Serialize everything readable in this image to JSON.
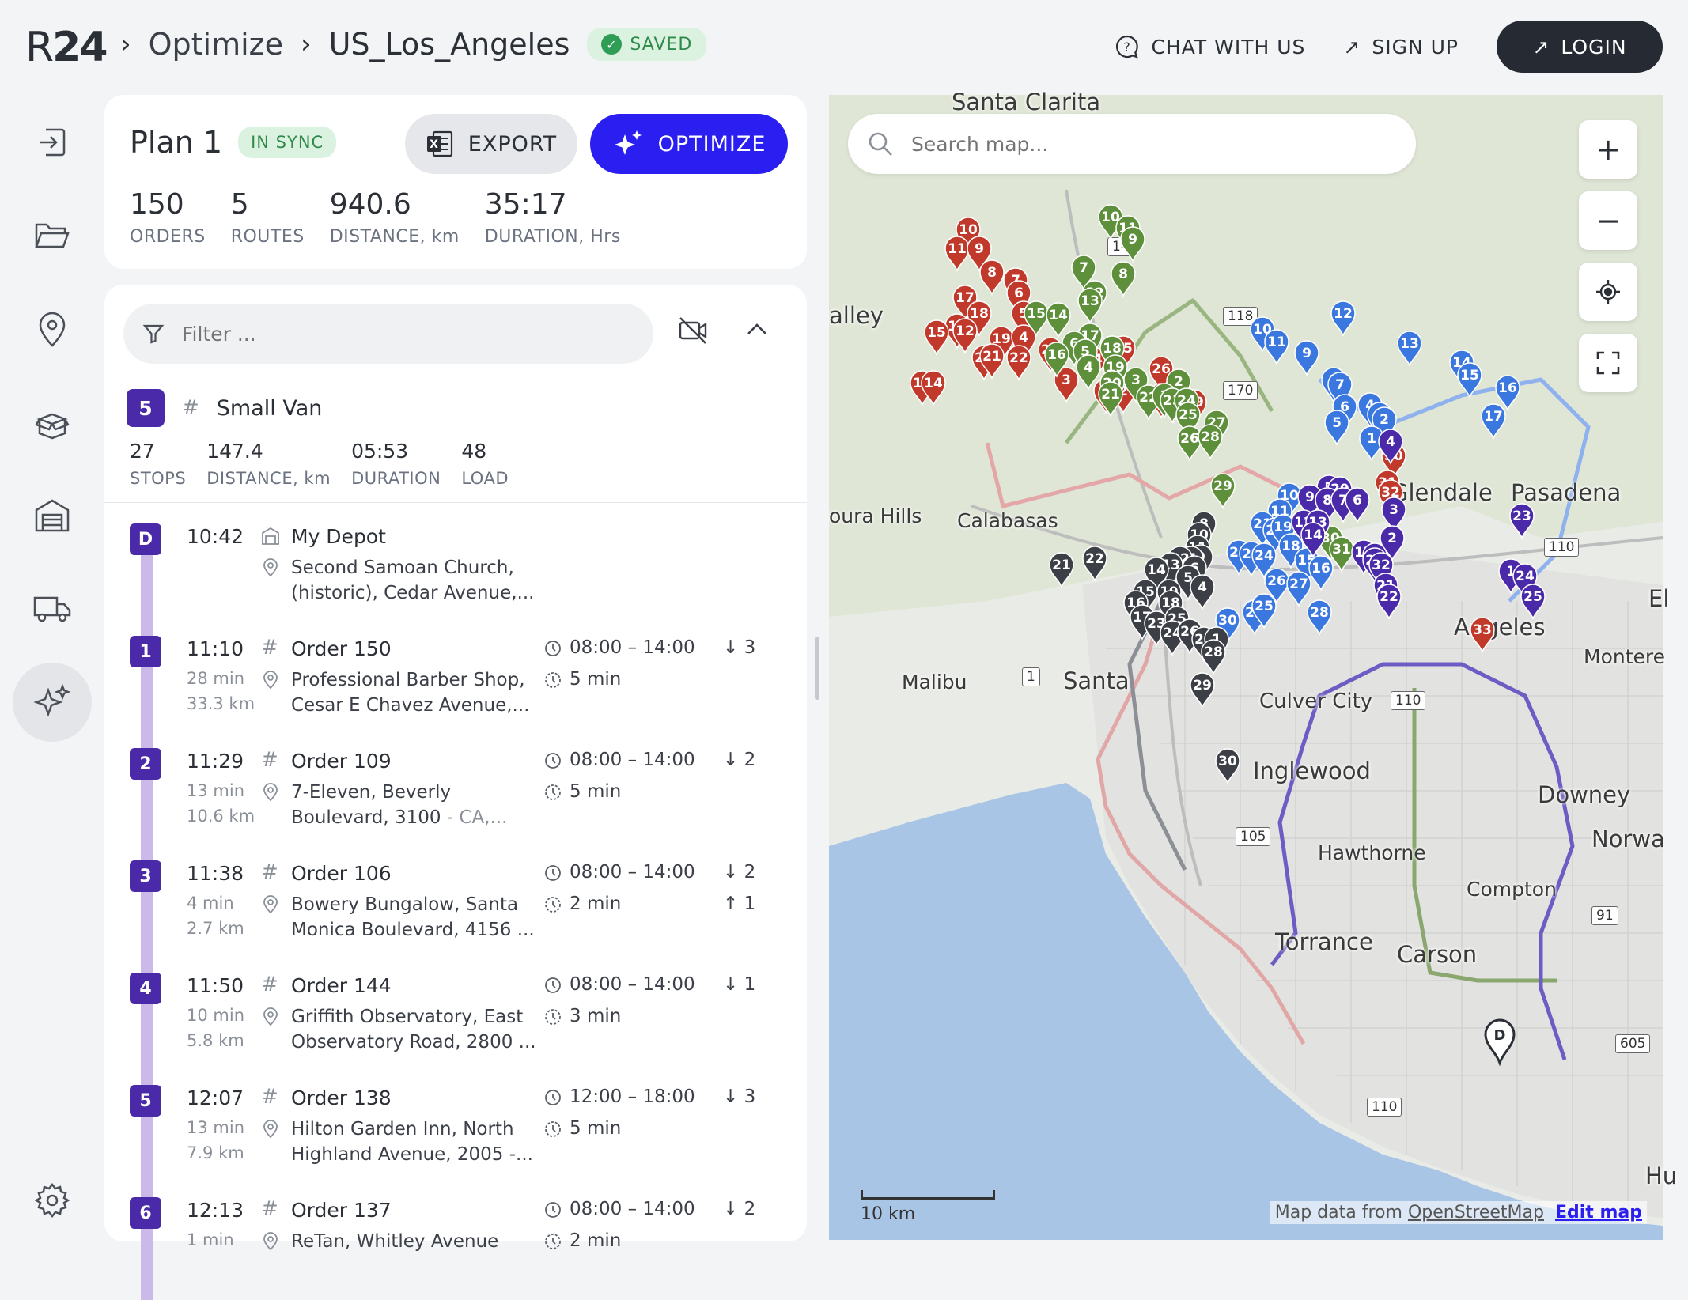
{
  "header": {
    "logo_light": "R",
    "logo_bold": "24",
    "breadcrumb": [
      "Optimize",
      "US_Los_Angeles"
    ],
    "saved_badge": "SAVED",
    "chat": "CHAT WITH US",
    "signup": "SIGN UP",
    "login": "LOGIN"
  },
  "plan": {
    "title": "Plan 1",
    "sync_badge": "IN SYNC",
    "export_label": "EXPORT",
    "optimize_label": "OPTIMIZE",
    "stats": [
      {
        "value": "150",
        "label": "ORDERS"
      },
      {
        "value": "5",
        "label": "ROUTES"
      },
      {
        "value": "940.6",
        "label": "DISTANCE, km"
      },
      {
        "value": "35:17",
        "label": "DURATION, Hrs"
      }
    ]
  },
  "route": {
    "filter_placeholder": "Filter ...",
    "vehicle_number": "5",
    "vehicle_name": "Small Van",
    "stats": [
      {
        "value": "27",
        "label": "STOPS"
      },
      {
        "value": "147.4",
        "label": "DISTANCE, km"
      },
      {
        "value": "05:53",
        "label": "DURATION"
      },
      {
        "value": "48",
        "label": "LOAD"
      }
    ],
    "depot": {
      "badge": "D",
      "time": "10:42",
      "title": "My Depot",
      "address": "Second Samoan Church, (historic), Cedar Avenue,..."
    },
    "stops": [
      {
        "badge": "1",
        "time": "11:10",
        "travel": "28 min",
        "dist": "33.3 km",
        "title": "Order 150",
        "address": "Professional Barber Shop, Cesar E Chavez Avenue,...",
        "address_muted": "",
        "window": "08:00 – 14:00",
        "service": "5 min",
        "down": "3",
        "up": ""
      },
      {
        "badge": "2",
        "time": "11:29",
        "travel": "13 min",
        "dist": "10.6 km",
        "title": "Order 109",
        "address": "7-Eleven, Beverly Boulevard, 3100",
        "address_muted": " - CA,...",
        "window": "08:00 – 14:00",
        "service": "5 min",
        "down": "2",
        "up": ""
      },
      {
        "badge": "3",
        "time": "11:38",
        "travel": "4 min",
        "dist": "2.7 km",
        "title": "Order 106",
        "address": "Bowery Bungalow, Santa Monica Boulevard, 4156 ...",
        "address_muted": "",
        "window": "08:00 – 14:00",
        "service": "2 min",
        "down": "2",
        "up": "1"
      },
      {
        "badge": "4",
        "time": "11:50",
        "travel": "10 min",
        "dist": "5.8 km",
        "title": "Order 144",
        "address": "Griffith Observatory, East Observatory Road, 2800 ...",
        "address_muted": "",
        "window": "08:00 – 14:00",
        "service": "3 min",
        "down": "1",
        "up": ""
      },
      {
        "badge": "5",
        "time": "12:07",
        "travel": "13 min",
        "dist": "7.9 km",
        "title": "Order 138",
        "address": "Hilton Garden Inn, North Highland Avenue, 2005 -...",
        "address_muted": "",
        "window": "12:00 – 18:00",
        "service": "5 min",
        "down": "3",
        "up": ""
      },
      {
        "badge": "6",
        "time": "12:13",
        "travel": "1 min",
        "dist": "",
        "title": "Order 137",
        "address": "ReTan, Whitley Avenue",
        "address_muted": "",
        "window": "08:00 – 14:00",
        "service": "2 min",
        "down": "2",
        "up": ""
      }
    ]
  },
  "map": {
    "search_placeholder": "Search map...",
    "zoom_in": "+",
    "zoom_out": "−",
    "scale_label": "10 km",
    "attribution_prefix": "Map data from ",
    "attribution_link": "OpenStreetMap",
    "edit_link": "Edit map",
    "place_labels": [
      "Santa Clarita",
      "alley",
      "oura Hills",
      "Calabasas",
      "Glendale",
      "Pasadena",
      "Malibu",
      "Santa",
      "Culver City",
      "Inglewood",
      "Hawthorne",
      "Downey",
      "Norwa",
      "Compton",
      "Torrance",
      "Carson",
      "Montere",
      "El",
      "Angeles",
      "Hu"
    ],
    "route_colors": {
      "red": "#c0392b",
      "green": "#5e8f3a",
      "blue": "#3a78e0",
      "purple": "#4a2aa8",
      "gray": "#3c4046"
    }
  }
}
